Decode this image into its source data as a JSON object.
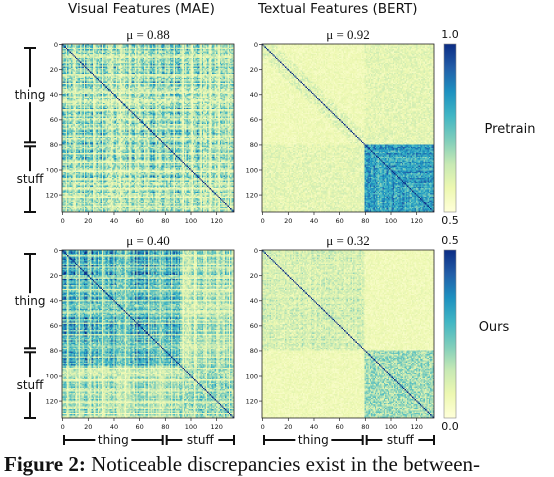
{
  "column_titles": [
    "Visual Features (MAE)",
    "Textual Features (BERT)"
  ],
  "row_labels": [
    "Pretrain",
    "Ours"
  ],
  "caption": {
    "label": "Figure 2:",
    "text": "Noticeable discrepancies exist in the between-"
  },
  "colors": {
    "cmap": [
      "#ffffd9",
      "#edf8b1",
      "#c7e9b4",
      "#7fcdbb",
      "#41b6c4",
      "#1d91c0",
      "#225ea8",
      "#0c2c84"
    ]
  },
  "chart_data": [
    {
      "type": "heatmap",
      "id": "pretrain-visual",
      "title": "μ = 0.88",
      "matrix_size": 134,
      "xticks": [
        0,
        20,
        40,
        60,
        80,
        100,
        120
      ],
      "yticks": [
        0,
        20,
        40,
        60,
        80,
        100,
        120
      ],
      "vlim": [
        0.5,
        1.0
      ],
      "style": "noisy-blocks",
      "groups": [
        {
          "name": "thing",
          "range": [
            0,
            80
          ]
        },
        {
          "name": "stuff",
          "range": [
            80,
            133
          ]
        }
      ]
    },
    {
      "type": "heatmap",
      "id": "pretrain-textual",
      "title": "μ = 0.92",
      "matrix_size": 134,
      "xticks": [
        0,
        20,
        40,
        60,
        80,
        100,
        120
      ],
      "yticks": [
        0,
        20,
        40,
        60,
        80,
        100,
        120
      ],
      "vlim": [
        0.5,
        1.0
      ],
      "style": "stuff-block",
      "groups": [
        {
          "name": "thing",
          "range": [
            0,
            80
          ]
        },
        {
          "name": "stuff",
          "range": [
            80,
            133
          ]
        }
      ]
    },
    {
      "type": "heatmap",
      "id": "ours-visual",
      "title": "μ = 0.40",
      "matrix_size": 134,
      "xticks": [
        0,
        20,
        40,
        60,
        80,
        100,
        120
      ],
      "yticks": [
        0,
        20,
        40,
        60,
        80,
        100,
        120
      ],
      "vlim": [
        0.0,
        0.5
      ],
      "style": "dense-thing",
      "groups": [
        {
          "name": "thing",
          "range": [
            0,
            80
          ]
        },
        {
          "name": "stuff",
          "range": [
            80,
            133
          ]
        }
      ]
    },
    {
      "type": "heatmap",
      "id": "ours-textual",
      "title": "μ = 0.32",
      "matrix_size": 134,
      "xticks": [
        0,
        20,
        40,
        60,
        80,
        100,
        120
      ],
      "yticks": [
        0,
        20,
        40,
        60,
        80,
        100,
        120
      ],
      "vlim": [
        0.0,
        0.5
      ],
      "style": "two-blocks",
      "groups": [
        {
          "name": "thing",
          "range": [
            0,
            80
          ]
        },
        {
          "name": "stuff",
          "range": [
            80,
            133
          ]
        }
      ]
    }
  ],
  "colorbars": [
    {
      "id": "colorbar-top",
      "ticks": [
        "1.0",
        "0.5"
      ]
    },
    {
      "id": "colorbar-bottom",
      "ticks": [
        "0.5",
        "0.0"
      ]
    }
  ],
  "group_labels": {
    "thing": "thing",
    "stuff": "stuff"
  }
}
